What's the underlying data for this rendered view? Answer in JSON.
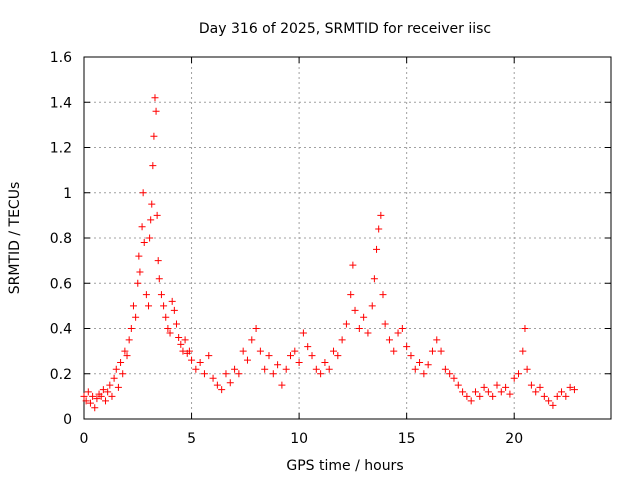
{
  "chart_data": {
    "type": "scatter",
    "title": "Day 316 of 2025, SRMTID for receiver iisc",
    "xlabel": "GPS time / hours",
    "ylabel": "SRMTID / TECUs",
    "xlim": [
      0,
      24.5
    ],
    "ylim": [
      0,
      1.6
    ],
    "xticks": [
      {
        "value": 0,
        "label": "0"
      },
      {
        "value": 5,
        "label": "5"
      },
      {
        "value": 10,
        "label": "10"
      },
      {
        "value": 15,
        "label": "15"
      },
      {
        "value": 20,
        "label": "20"
      }
    ],
    "yticks": [
      {
        "value": 0,
        "label": "0"
      },
      {
        "value": 0.2,
        "label": "0.2"
      },
      {
        "value": 0.4,
        "label": "0.4"
      },
      {
        "value": 0.6,
        "label": "0.6"
      },
      {
        "value": 0.8,
        "label": "0.8"
      },
      {
        "value": 1.0,
        "label": "1"
      },
      {
        "value": 1.2,
        "label": "1.2"
      },
      {
        "value": 1.4,
        "label": "1.4"
      },
      {
        "value": 1.6,
        "label": "1.6"
      }
    ],
    "grid": true,
    "marker": "+",
    "series": [
      {
        "name": "SRMTID",
        "color": "#ff0000",
        "points": [
          [
            0.0,
            0.1
          ],
          [
            0.1,
            0.08
          ],
          [
            0.2,
            0.12
          ],
          [
            0.3,
            0.07
          ],
          [
            0.4,
            0.1
          ],
          [
            0.5,
            0.05
          ],
          [
            0.6,
            0.09
          ],
          [
            0.7,
            0.11
          ],
          [
            0.8,
            0.1
          ],
          [
            0.9,
            0.13
          ],
          [
            1.0,
            0.08
          ],
          [
            1.1,
            0.12
          ],
          [
            1.2,
            0.15
          ],
          [
            1.3,
            0.1
          ],
          [
            1.4,
            0.18
          ],
          [
            1.5,
            0.22
          ],
          [
            1.6,
            0.14
          ],
          [
            1.7,
            0.25
          ],
          [
            1.8,
            0.2
          ],
          [
            1.9,
            0.3
          ],
          [
            2.0,
            0.28
          ],
          [
            2.1,
            0.35
          ],
          [
            2.2,
            0.4
          ],
          [
            2.3,
            0.5
          ],
          [
            2.4,
            0.45
          ],
          [
            2.5,
            0.6
          ],
          [
            2.55,
            0.72
          ],
          [
            2.6,
            0.65
          ],
          [
            2.7,
            0.85
          ],
          [
            2.75,
            1.0
          ],
          [
            2.8,
            0.78
          ],
          [
            2.9,
            0.55
          ],
          [
            3.0,
            0.5
          ],
          [
            3.05,
            0.8
          ],
          [
            3.1,
            0.88
          ],
          [
            3.15,
            0.95
          ],
          [
            3.2,
            1.12
          ],
          [
            3.25,
            1.25
          ],
          [
            3.3,
            1.42
          ],
          [
            3.35,
            1.36
          ],
          [
            3.4,
            0.9
          ],
          [
            3.45,
            0.7
          ],
          [
            3.5,
            0.62
          ],
          [
            3.6,
            0.55
          ],
          [
            3.7,
            0.5
          ],
          [
            3.8,
            0.45
          ],
          [
            3.9,
            0.4
          ],
          [
            4.0,
            0.38
          ],
          [
            4.1,
            0.52
          ],
          [
            4.2,
            0.48
          ],
          [
            4.3,
            0.42
          ],
          [
            4.4,
            0.36
          ],
          [
            4.5,
            0.33
          ],
          [
            4.6,
            0.3
          ],
          [
            4.7,
            0.35
          ],
          [
            4.8,
            0.29
          ],
          [
            4.9,
            0.3
          ],
          [
            5.0,
            0.26
          ],
          [
            5.2,
            0.22
          ],
          [
            5.4,
            0.25
          ],
          [
            5.6,
            0.2
          ],
          [
            5.8,
            0.28
          ],
          [
            6.0,
            0.18
          ],
          [
            6.2,
            0.15
          ],
          [
            6.4,
            0.13
          ],
          [
            6.6,
            0.2
          ],
          [
            6.8,
            0.16
          ],
          [
            7.0,
            0.22
          ],
          [
            7.2,
            0.2
          ],
          [
            7.4,
            0.3
          ],
          [
            7.6,
            0.26
          ],
          [
            7.8,
            0.35
          ],
          [
            8.0,
            0.4
          ],
          [
            8.2,
            0.3
          ],
          [
            8.4,
            0.22
          ],
          [
            8.6,
            0.28
          ],
          [
            8.8,
            0.2
          ],
          [
            9.0,
            0.24
          ],
          [
            9.2,
            0.15
          ],
          [
            9.4,
            0.22
          ],
          [
            9.6,
            0.28
          ],
          [
            9.8,
            0.3
          ],
          [
            10.0,
            0.25
          ],
          [
            10.2,
            0.38
          ],
          [
            10.4,
            0.32
          ],
          [
            10.6,
            0.28
          ],
          [
            10.8,
            0.22
          ],
          [
            11.0,
            0.2
          ],
          [
            11.2,
            0.25
          ],
          [
            11.4,
            0.22
          ],
          [
            11.6,
            0.3
          ],
          [
            11.8,
            0.28
          ],
          [
            12.0,
            0.35
          ],
          [
            12.2,
            0.42
          ],
          [
            12.4,
            0.55
          ],
          [
            12.5,
            0.68
          ],
          [
            12.6,
            0.48
          ],
          [
            12.8,
            0.4
          ],
          [
            13.0,
            0.45
          ],
          [
            13.2,
            0.38
          ],
          [
            13.4,
            0.5
          ],
          [
            13.5,
            0.62
          ],
          [
            13.6,
            0.75
          ],
          [
            13.7,
            0.84
          ],
          [
            13.8,
            0.9
          ],
          [
            13.9,
            0.55
          ],
          [
            14.0,
            0.42
          ],
          [
            14.2,
            0.35
          ],
          [
            14.4,
            0.3
          ],
          [
            14.6,
            0.38
          ],
          [
            14.8,
            0.4
          ],
          [
            15.0,
            0.32
          ],
          [
            15.2,
            0.28
          ],
          [
            15.4,
            0.22
          ],
          [
            15.6,
            0.25
          ],
          [
            15.8,
            0.2
          ],
          [
            16.0,
            0.24
          ],
          [
            16.2,
            0.3
          ],
          [
            16.4,
            0.35
          ],
          [
            16.6,
            0.3
          ],
          [
            16.8,
            0.22
          ],
          [
            17.0,
            0.2
          ],
          [
            17.2,
            0.18
          ],
          [
            17.4,
            0.15
          ],
          [
            17.6,
            0.12
          ],
          [
            17.8,
            0.1
          ],
          [
            18.0,
            0.08
          ],
          [
            18.2,
            0.12
          ],
          [
            18.4,
            0.1
          ],
          [
            18.6,
            0.14
          ],
          [
            18.8,
            0.12
          ],
          [
            19.0,
            0.1
          ],
          [
            19.2,
            0.15
          ],
          [
            19.4,
            0.12
          ],
          [
            19.6,
            0.14
          ],
          [
            19.8,
            0.11
          ],
          [
            20.0,
            0.18
          ],
          [
            20.2,
            0.2
          ],
          [
            20.4,
            0.3
          ],
          [
            20.5,
            0.4
          ],
          [
            20.6,
            0.22
          ],
          [
            20.8,
            0.15
          ],
          [
            21.0,
            0.12
          ],
          [
            21.2,
            0.14
          ],
          [
            21.4,
            0.1
          ],
          [
            21.6,
            0.08
          ],
          [
            21.8,
            0.06
          ],
          [
            22.0,
            0.1
          ],
          [
            22.2,
            0.12
          ],
          [
            22.4,
            0.1
          ],
          [
            22.6,
            0.14
          ],
          [
            22.8,
            0.13
          ]
        ]
      }
    ]
  }
}
